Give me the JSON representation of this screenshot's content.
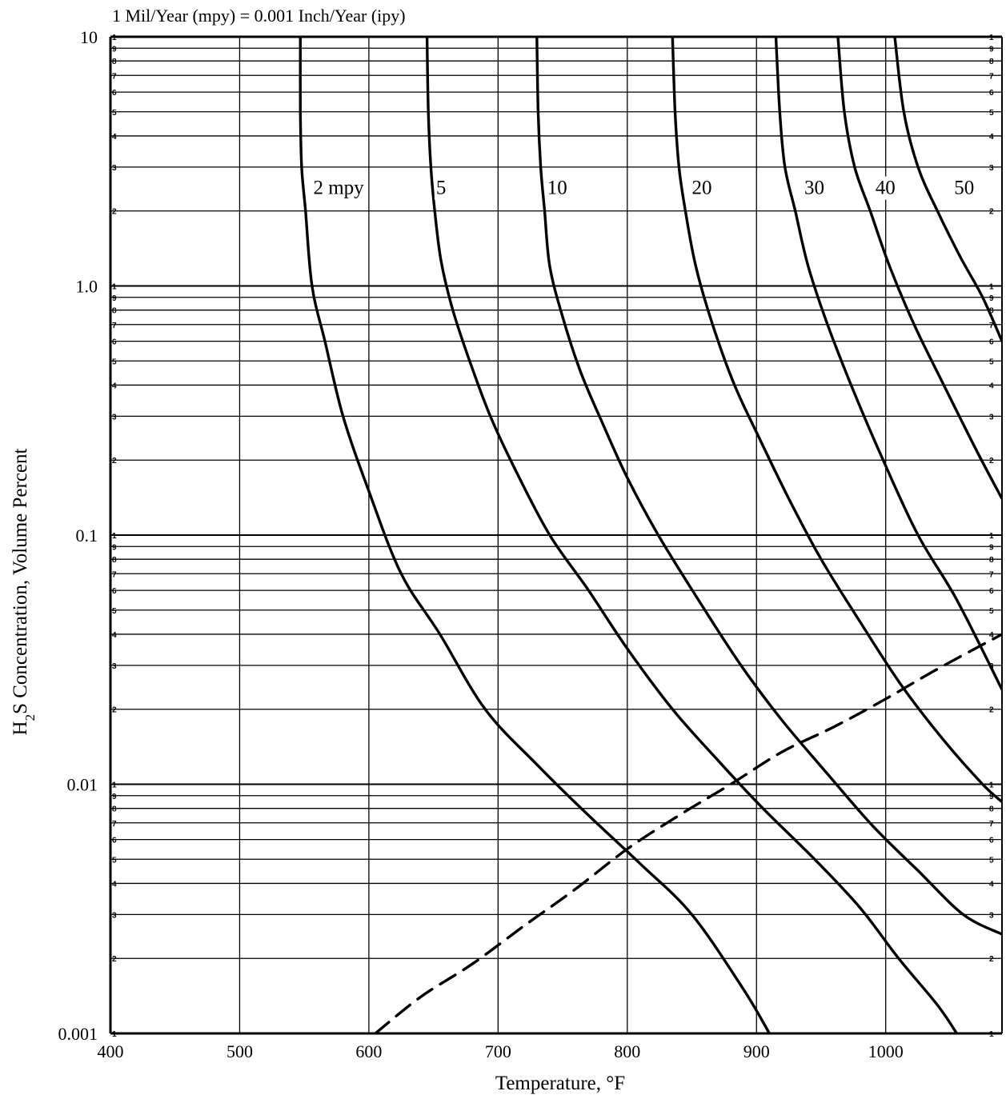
{
  "chart_data": {
    "type": "line",
    "subtitle": "1 Mil/Year (mpy) = 0.001 Inch/Year (ipy)",
    "xlabel": "Temperature, °F",
    "ylabel_main": "H",
    "ylabel_sub": "2",
    "ylabel_rest": "S Concentration, Volume Percent",
    "x_scale": "linear",
    "y_scale": "log",
    "xlim": [
      400,
      1090
    ],
    "ylim": [
      0.001,
      10
    ],
    "grid": true,
    "x_ticks": [
      400,
      500,
      600,
      700,
      800,
      900,
      1000
    ],
    "x_tick_labels": [
      "400",
      "500",
      "600",
      "700",
      "800",
      "900",
      "1000"
    ],
    "y_major_ticks": [
      0.001,
      0.01,
      0.1,
      1,
      10
    ],
    "y_tick_labels": [
      "0.001",
      "0.01",
      "0.1",
      "1.0",
      "10"
    ],
    "y_minor_digits": [
      "1",
      "2",
      "3",
      "4",
      "5",
      "6",
      "7",
      "8",
      "9"
    ],
    "series": [
      {
        "name": "2 mpy",
        "style": "solid",
        "x": [
          547,
          547,
          548,
          551,
          556,
          566,
          580,
          600,
          625,
          655,
          690,
          730,
          770,
          810,
          850,
          890,
          910
        ],
        "y": [
          10,
          5,
          3,
          2,
          1,
          0.6,
          0.3,
          0.15,
          0.07,
          0.04,
          0.02,
          0.012,
          0.0075,
          0.0048,
          0.003,
          0.0015,
          0.001
        ]
      },
      {
        "name": "5",
        "style": "solid",
        "x": [
          645,
          646,
          648,
          651,
          656,
          665,
          678,
          694,
          714,
          740,
          770,
          800,
          835,
          870,
          905,
          945,
          980,
          1010,
          1040,
          1055
        ],
        "y": [
          10,
          5,
          3,
          2,
          1.25,
          0.8,
          0.5,
          0.3,
          0.18,
          0.1,
          0.06,
          0.035,
          0.02,
          0.0125,
          0.008,
          0.005,
          0.0032,
          0.002,
          0.0013,
          0.001
        ]
      },
      {
        "name": "10",
        "style": "solid",
        "x": [
          730,
          731,
          733,
          736,
          740,
          750,
          764,
          781,
          800,
          824,
          855,
          888,
          920,
          955,
          990,
          1025,
          1060,
          1090
        ],
        "y": [
          10,
          5,
          3,
          2,
          1.2,
          0.75,
          0.45,
          0.28,
          0.17,
          0.1,
          0.055,
          0.03,
          0.018,
          0.011,
          0.0068,
          0.0045,
          0.003,
          0.0025
        ]
      },
      {
        "name": "20",
        "style": "solid",
        "x": [
          835,
          837,
          840,
          845,
          853,
          866,
          883,
          903,
          925,
          950,
          980,
          1012,
          1045,
          1075,
          1090
        ],
        "y": [
          10,
          5,
          3,
          2,
          1.2,
          0.7,
          0.4,
          0.24,
          0.14,
          0.08,
          0.045,
          0.025,
          0.015,
          0.01,
          0.0085
        ]
      },
      {
        "name": "30",
        "style": "solid",
        "x": [
          915,
          918,
          922,
          930,
          940,
          955,
          975,
          998,
          1025,
          1055,
          1090
        ],
        "y": [
          10,
          5,
          3,
          2,
          1.2,
          0.7,
          0.38,
          0.2,
          0.1,
          0.055,
          0.024
        ]
      },
      {
        "name": "40",
        "style": "solid",
        "x": [
          963,
          968,
          976,
          988,
          1003,
          1022,
          1045,
          1070,
          1090
        ],
        "y": [
          10,
          5,
          3,
          2,
          1.2,
          0.7,
          0.4,
          0.22,
          0.14
        ]
      },
      {
        "name": "50",
        "style": "solid",
        "x": [
          1007,
          1014,
          1025,
          1040,
          1058,
          1075,
          1090
        ],
        "y": [
          10,
          5,
          3,
          2,
          1.3,
          0.9,
          0.6
        ]
      },
      {
        "name": "",
        "style": "dashed",
        "x": [
          605,
          640,
          680,
          720,
          760,
          800,
          840,
          880,
          920,
          960,
          1000,
          1040,
          1090
        ],
        "y": [
          0.001,
          0.0014,
          0.0019,
          0.0027,
          0.0038,
          0.0055,
          0.0075,
          0.01,
          0.0135,
          0.017,
          0.022,
          0.029,
          0.04
        ]
      }
    ],
    "curve_labels": [
      {
        "text": "2 mpy",
        "x": 557,
        "y": 2.5
      },
      {
        "text": "5",
        "x": 652,
        "y": 2.5
      },
      {
        "text": "10",
        "x": 738,
        "y": 2.5
      },
      {
        "text": "20",
        "x": 850,
        "y": 2.5
      },
      {
        "text": "30",
        "x": 937,
        "y": 2.5
      },
      {
        "text": "40",
        "x": 992,
        "y": 2.5
      },
      {
        "text": "50",
        "x": 1053,
        "y": 2.5
      }
    ]
  }
}
